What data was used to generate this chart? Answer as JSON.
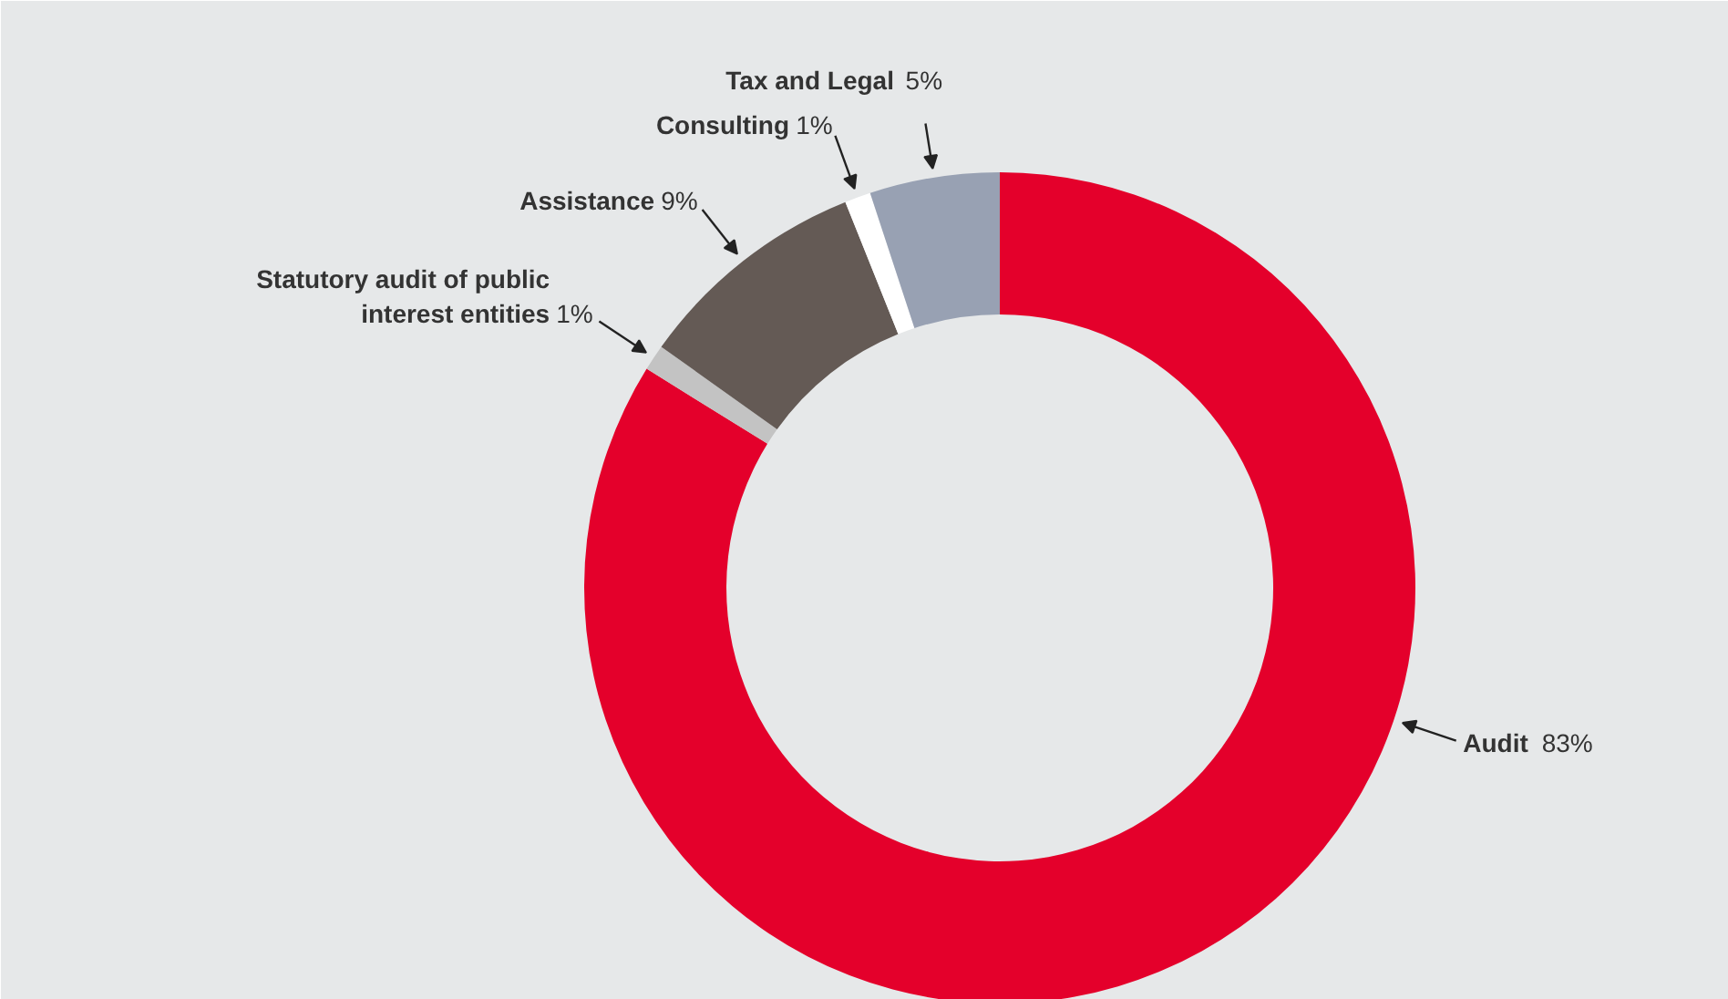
{
  "chart_data": {
    "type": "donut",
    "categories": [
      "Audit",
      "Statutory audit of public\ninterest entities",
      "Assistance",
      "Consulting",
      "Tax and Legal"
    ],
    "values": [
      83,
      1,
      9,
      1,
      5
    ],
    "value_labels": [
      "83%",
      "1%",
      "9%",
      "1%",
      "5%"
    ],
    "colors": [
      "#e4002b",
      "#c3c3c3",
      "#645a55",
      "#ffffff",
      "#98a1b3"
    ]
  }
}
